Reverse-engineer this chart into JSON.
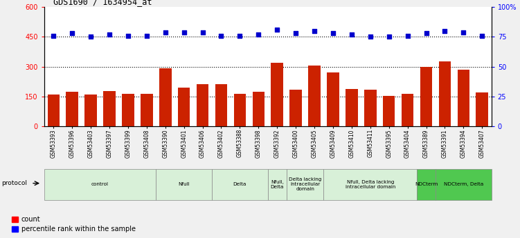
{
  "title": "GDS1690 / 1634954_at",
  "categories": [
    "GSM53393",
    "GSM53396",
    "GSM53403",
    "GSM53397",
    "GSM53399",
    "GSM53408",
    "GSM53390",
    "GSM53401",
    "GSM53406",
    "GSM53402",
    "GSM53388",
    "GSM53398",
    "GSM53392",
    "GSM53400",
    "GSM53405",
    "GSM53409",
    "GSM53410",
    "GSM53411",
    "GSM53395",
    "GSM53404",
    "GSM53389",
    "GSM53391",
    "GSM53394",
    "GSM53407"
  ],
  "bar_values": [
    158,
    175,
    158,
    178,
    162,
    163,
    292,
    195,
    210,
    210,
    162,
    173,
    318,
    185,
    305,
    272,
    188,
    185,
    152,
    163,
    298,
    325,
    285,
    170
  ],
  "dot_values_pct": [
    76,
    78,
    75,
    77,
    76,
    76,
    79,
    79,
    79,
    76,
    76,
    77,
    81,
    78,
    80,
    78,
    77,
    75,
    75,
    76,
    78,
    80,
    79,
    76
  ],
  "protocol_groups": [
    {
      "label": "control",
      "start": 0,
      "end": 5,
      "color": "#d8f0d8"
    },
    {
      "label": "Nfull",
      "start": 6,
      "end": 8,
      "color": "#d8f0d8"
    },
    {
      "label": "Delta",
      "start": 9,
      "end": 11,
      "color": "#d8f0d8"
    },
    {
      "label": "Nfull,\nDelta",
      "start": 12,
      "end": 12,
      "color": "#d8f0d8"
    },
    {
      "label": "Delta lacking\nintracellular\ndomain",
      "start": 13,
      "end": 14,
      "color": "#d8f0d8"
    },
    {
      "label": "Nfull, Delta lacking\nintracellular domain",
      "start": 15,
      "end": 19,
      "color": "#d8f0d8"
    },
    {
      "label": "NDCterm",
      "start": 20,
      "end": 20,
      "color": "#50c850"
    },
    {
      "label": "NDCterm, Delta",
      "start": 21,
      "end": 23,
      "color": "#50c850"
    }
  ],
  "ylim_left": [
    0,
    600
  ],
  "yticks_left": [
    0,
    150,
    300,
    450,
    600
  ],
  "yticks_right_labels": [
    "0",
    "25",
    "50",
    "75",
    "100%"
  ],
  "bar_color": "#cc2200",
  "dot_color": "#0000cc",
  "plot_bg": "#ffffff"
}
